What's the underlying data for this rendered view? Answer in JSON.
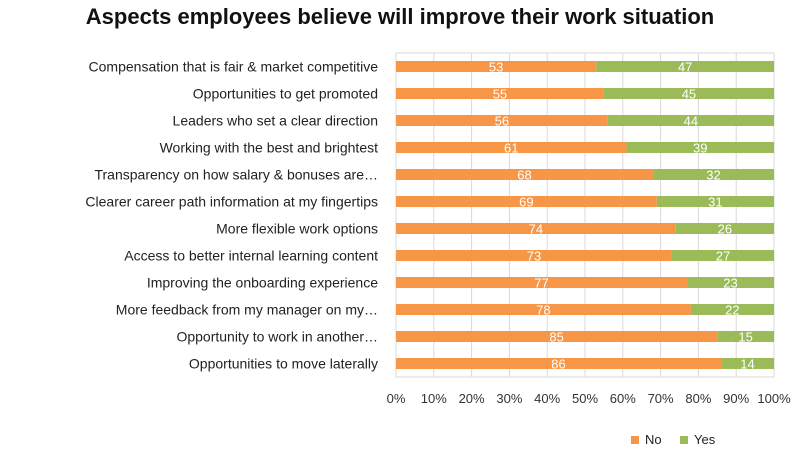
{
  "chart_data": {
    "type": "bar",
    "orientation": "horizontal",
    "stacked": true,
    "title": "Aspects employees believe will improve their work situation",
    "categories": [
      "Compensation that is fair & market competitive",
      "Opportunities to get promoted",
      "Leaders who set a clear direction",
      "Working with the best and brightest",
      "Transparency on how salary & bonuses are…",
      "Clearer career path information at my fingertips",
      "More flexible work options",
      "Access to better internal learning content",
      "Improving the onboarding experience",
      "More feedback from my manager on my…",
      "Opportunity to work in another…",
      "Opportunities to move laterally"
    ],
    "series": [
      {
        "name": "No",
        "color": "#f79646",
        "values": [
          53,
          55,
          56,
          61,
          68,
          69,
          74,
          73,
          77,
          78,
          85,
          86
        ]
      },
      {
        "name": "Yes",
        "color": "#9bbb59",
        "values": [
          47,
          45,
          44,
          39,
          32,
          31,
          26,
          27,
          23,
          22,
          15,
          14
        ]
      }
    ],
    "xlim": [
      0,
      100
    ],
    "x_ticks": [
      "0%",
      "10%",
      "20%",
      "30%",
      "40%",
      "50%",
      "60%",
      "70%",
      "80%",
      "90%",
      "100%"
    ],
    "grid": "vertical",
    "legend": "bottom-right",
    "data_labels": true,
    "xlabel": "",
    "ylabel": ""
  }
}
